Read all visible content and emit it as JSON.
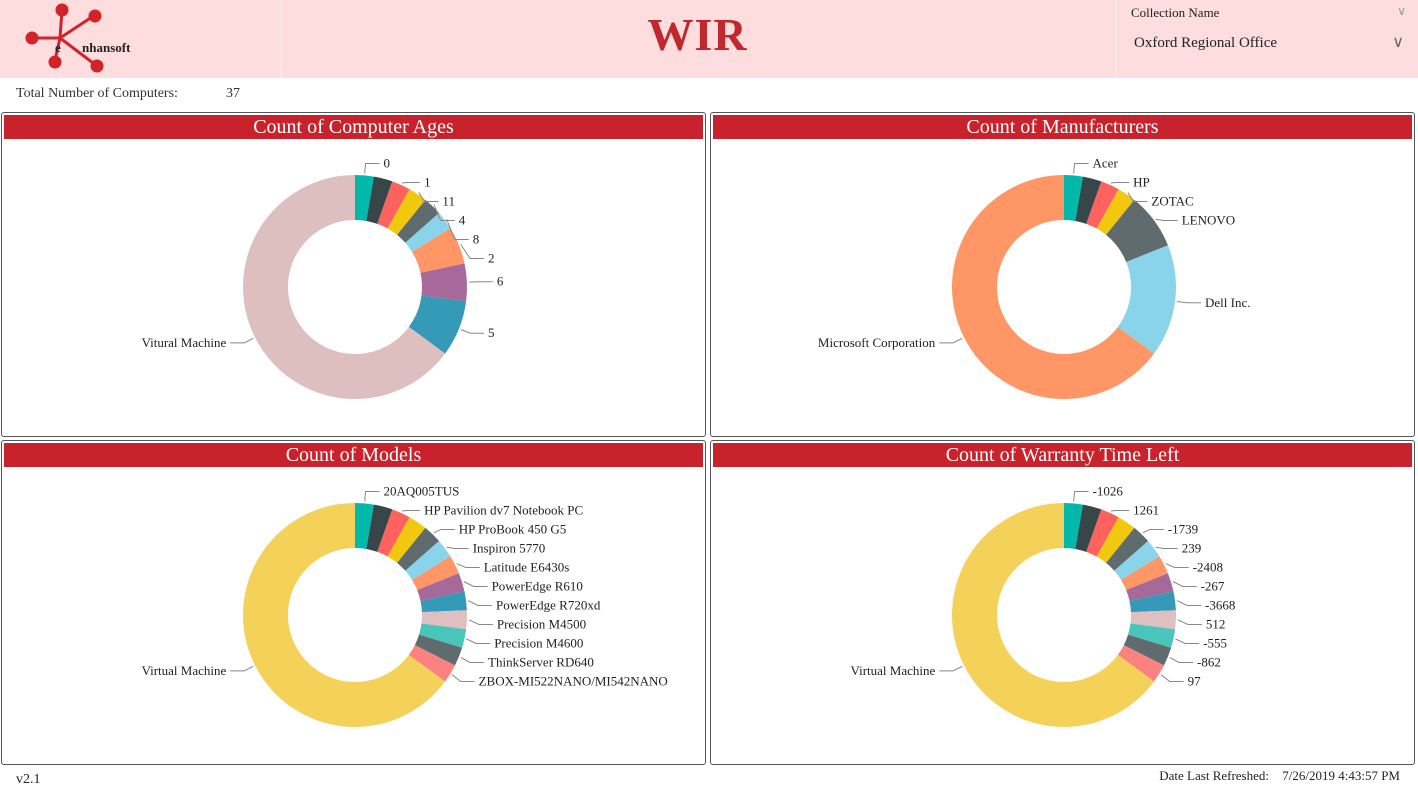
{
  "header": {
    "logo_text": "enhansoft",
    "title": "WIR",
    "slicer": {
      "label": "Collection Name",
      "selected": "Oxford Regional Office"
    }
  },
  "summary": {
    "total_label": "Total Number of Computers:",
    "total_value": "37"
  },
  "footer": {
    "version": "v2.1",
    "refreshed_label": "Date Last Refreshed:",
    "refreshed_value": "7/26/2019 4:43:57 PM"
  },
  "chart_data": [
    {
      "type": "pie",
      "donut": true,
      "title": "Count of Computer Ages",
      "slices": [
        {
          "label": "0",
          "value": 1,
          "color": "#01B8AA"
        },
        {
          "label": null,
          "value": 1,
          "color": "#374649"
        },
        {
          "label": "1",
          "value": 1,
          "color": "#FD625E"
        },
        {
          "label": "11",
          "value": 1,
          "color": "#F2C80F"
        },
        {
          "label": "4",
          "value": 1,
          "color": "#5F6B6D"
        },
        {
          "label": "8",
          "value": 1,
          "color": "#8AD4EB"
        },
        {
          "label": "2",
          "value": 2,
          "color": "#FE9666"
        },
        {
          "label": "6",
          "value": 2,
          "color": "#A66999"
        },
        {
          "label": "5",
          "value": 3,
          "color": "#3599B8"
        },
        {
          "label": "Vitural Machine",
          "value": 24,
          "color": "#DDBFBF"
        }
      ]
    },
    {
      "type": "pie",
      "donut": true,
      "title": "Count of Manufacturers",
      "slices": [
        {
          "label": "Acer",
          "value": 1,
          "color": "#01B8AA"
        },
        {
          "label": null,
          "value": 1,
          "color": "#374649"
        },
        {
          "label": "HP",
          "value": 1,
          "color": "#FD625E"
        },
        {
          "label": "ZOTAC",
          "value": 1,
          "color": "#F2C80F"
        },
        {
          "label": "LENOVO",
          "value": 3,
          "color": "#5F6B6D"
        },
        {
          "label": "Dell Inc.",
          "value": 6,
          "color": "#8AD4EB"
        },
        {
          "label": "Microsoft Corporation",
          "value": 24,
          "color": "#FE9666"
        }
      ]
    },
    {
      "type": "pie",
      "donut": true,
      "title": "Count of Models",
      "slices": [
        {
          "label": "20AQ005TUS",
          "value": 1,
          "color": "#01B8AA"
        },
        {
          "label": null,
          "value": 1,
          "color": "#374649"
        },
        {
          "label": "HP Pavilion dv7 Notebook PC",
          "value": 1,
          "color": "#FD625E"
        },
        {
          "label": null,
          "value": 1,
          "color": "#F2C80F"
        },
        {
          "label": "HP ProBook 450 G5",
          "value": 1,
          "color": "#5F6B6D"
        },
        {
          "label": "Inspiron 5770",
          "value": 1,
          "color": "#8AD4EB"
        },
        {
          "label": "Latitude E6430s",
          "value": 1,
          "color": "#FE9666"
        },
        {
          "label": "PowerEdge R610",
          "value": 1,
          "color": "#A66999"
        },
        {
          "label": "PowerEdge R720xd",
          "value": 1,
          "color": "#3599B8"
        },
        {
          "label": "Precision M4500",
          "value": 1,
          "color": "#DFBFBF"
        },
        {
          "label": "Precision M4600",
          "value": 1,
          "color": "#4AC5BB"
        },
        {
          "label": "ThinkServer RD640",
          "value": 1,
          "color": "#5F6B6D"
        },
        {
          "label": "ZBOX-MI522NANO/MI542NANO",
          "value": 1,
          "color": "#FB8281"
        },
        {
          "label": "Virtual Machine",
          "value": 24,
          "color": "#F4D25A"
        }
      ]
    },
    {
      "type": "pie",
      "donut": true,
      "title": "Count of Warranty Time Left",
      "slices": [
        {
          "label": "-1026",
          "value": 1,
          "color": "#01B8AA"
        },
        {
          "label": null,
          "value": 1,
          "color": "#374649"
        },
        {
          "label": "1261",
          "value": 1,
          "color": "#FD625E"
        },
        {
          "label": null,
          "value": 1,
          "color": "#F2C80F"
        },
        {
          "label": "-1739",
          "value": 1,
          "color": "#5F6B6D"
        },
        {
          "label": "239",
          "value": 1,
          "color": "#8AD4EB"
        },
        {
          "label": "-2408",
          "value": 1,
          "color": "#FE9666"
        },
        {
          "label": "-267",
          "value": 1,
          "color": "#A66999"
        },
        {
          "label": "-3668",
          "value": 1,
          "color": "#3599B8"
        },
        {
          "label": "512",
          "value": 1,
          "color": "#DFBFBF"
        },
        {
          "label": "-555",
          "value": 1,
          "color": "#4AC5BB"
        },
        {
          "label": "-862",
          "value": 1,
          "color": "#5F6B6D"
        },
        {
          "label": "97",
          "value": 1,
          "color": "#FB8281"
        },
        {
          "label": "Virtual Machine",
          "value": 24,
          "color": "#F4D25A"
        }
      ]
    }
  ]
}
